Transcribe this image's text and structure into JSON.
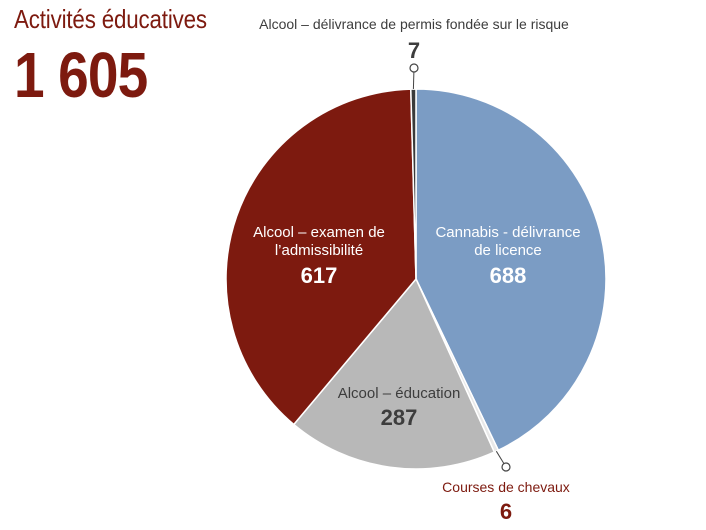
{
  "title": "Activités éducatives",
  "total": "1 605",
  "colors": {
    "cannabis": "#7b9cc4",
    "courses": "#e8e8e8",
    "education": "#b8b8b8",
    "examen": "#7d1a0f",
    "permis": "#3a3a3a",
    "dark_text": "#3d3d3d",
    "accent_text": "#7d1a0f"
  },
  "chart_data": {
    "type": "pie",
    "slices": [
      {
        "label_lines": [
          "Cannabis - délivrance",
          "de licence"
        ],
        "value": 688,
        "color": "#7b9cc4",
        "label_color": "#ffffff"
      },
      {
        "label_lines": [
          "Courses de chevaux"
        ],
        "value": 6,
        "color": "#e8e8e8",
        "label_color": "#7d1a0f"
      },
      {
        "label_lines": [
          "Alcool – éducation"
        ],
        "value": 287,
        "color": "#b8b8b8",
        "label_color": "#3d3d3d"
      },
      {
        "label_lines": [
          "Alcool – examen de",
          "l’admissibilité"
        ],
        "value": 617,
        "color": "#7d1a0f",
        "label_color": "#ffffff"
      },
      {
        "label_lines": [
          "Alcool – délivrance de permis fondée sur le risque"
        ],
        "value": 7,
        "color": "#3a3a3a",
        "label_color": "#3d3d3d"
      }
    ]
  }
}
